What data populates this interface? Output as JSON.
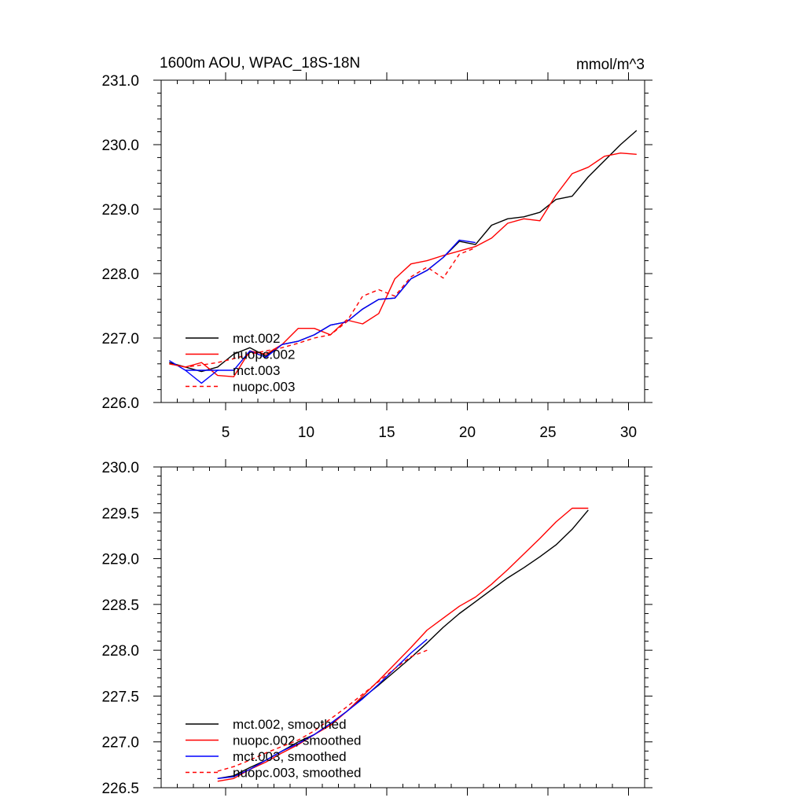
{
  "title_left": "1600m AOU, WPAC_18S-18N",
  "title_right": "mmol/m^3",
  "chart_data": [
    {
      "type": "line",
      "title": "1600m AOU, WPAC_18S-18N",
      "units": "mmol/m^3",
      "xlim": [
        1,
        31
      ],
      "ylim": [
        226.0,
        231.0
      ],
      "x_ticks": [
        5,
        10,
        15,
        20,
        25,
        30
      ],
      "x_tick_labels": [
        "5",
        "10",
        "15",
        "20",
        "25",
        "30"
      ],
      "y_ticks": [
        226,
        227,
        228,
        229,
        230,
        231
      ],
      "y_tick_labels": [
        "226.0",
        "227.0",
        "228.0",
        "229.0",
        "230.0",
        "231.0"
      ],
      "legend_position": "bottom-left",
      "series": [
        {
          "name": "mct.002",
          "color": "#000000",
          "dash": "solid",
          "x": [
            1.5,
            2.5,
            3.5,
            4.5,
            5.5,
            6.5,
            7.5,
            8.5,
            9.5,
            10.5,
            11.5,
            12.5,
            13.5,
            14.5,
            15.5,
            16.5,
            17.5,
            18.5,
            19.5,
            20.5,
            21.5,
            22.5,
            23.5,
            24.5,
            25.5,
            26.5,
            27.5,
            28.5,
            29.5,
            30.5
          ],
          "values": [
            226.62,
            226.55,
            226.48,
            226.55,
            226.75,
            226.85,
            226.72,
            226.9,
            226.95,
            227.05,
            227.2,
            227.25,
            227.45,
            227.6,
            227.62,
            227.92,
            228.05,
            228.25,
            228.5,
            228.45,
            228.75,
            228.85,
            228.88,
            228.95,
            229.15,
            229.2,
            229.5,
            229.75,
            230.0,
            230.22
          ]
        },
        {
          "name": "nuopc.002",
          "color": "#ff0000",
          "dash": "solid",
          "x": [
            1.5,
            2.5,
            3.5,
            4.5,
            5.5,
            6.5,
            7.5,
            8.5,
            9.5,
            10.5,
            11.5,
            12.5,
            13.5,
            14.5,
            15.5,
            16.5,
            17.5,
            18.5,
            19.5,
            20.5,
            21.5,
            22.5,
            23.5,
            24.5,
            25.5,
            26.5,
            27.5,
            28.5,
            29.5,
            30.5
          ],
          "values": [
            226.6,
            226.55,
            226.62,
            226.42,
            226.4,
            226.8,
            226.75,
            226.9,
            227.15,
            227.15,
            227.05,
            227.28,
            227.22,
            227.38,
            227.92,
            228.15,
            228.2,
            228.28,
            228.35,
            228.42,
            228.55,
            228.78,
            228.85,
            228.82,
            229.22,
            229.55,
            229.65,
            229.82,
            229.87,
            229.85
          ]
        },
        {
          "name": "mct.003",
          "color": "#0000ff",
          "dash": "solid",
          "x": [
            1.5,
            2.5,
            3.5,
            4.5,
            5.5,
            6.5,
            7.5,
            8.5,
            9.5,
            10.5,
            11.5,
            12.5,
            13.5,
            14.5,
            15.5,
            16.5,
            17.5,
            18.5,
            19.5,
            20.5
          ],
          "values": [
            226.65,
            226.5,
            226.3,
            226.5,
            226.5,
            226.8,
            226.7,
            226.9,
            226.95,
            227.05,
            227.2,
            227.25,
            227.45,
            227.6,
            227.62,
            227.92,
            228.05,
            228.25,
            228.52,
            228.48
          ]
        },
        {
          "name": "nuopc.003",
          "color": "#ff0000",
          "dash": "dashed",
          "x": [
            1.5,
            2.5,
            3.5,
            4.5,
            5.5,
            6.5,
            7.5,
            8.5,
            9.5,
            10.5,
            11.5,
            12.5,
            13.5,
            14.5,
            15.5,
            16.5,
            17.5,
            18.5,
            19.5,
            20.5
          ],
          "values": [
            226.6,
            226.55,
            226.58,
            226.62,
            226.68,
            226.75,
            226.8,
            226.85,
            226.92,
            227.0,
            227.05,
            227.25,
            227.65,
            227.75,
            227.65,
            227.95,
            228.1,
            227.93,
            228.3,
            228.4
          ]
        }
      ]
    },
    {
      "type": "line",
      "xlim": [
        1,
        31
      ],
      "ylim": [
        226.5,
        230.0
      ],
      "x_ticks": [
        5,
        10,
        15,
        20,
        25,
        30
      ],
      "y_ticks": [
        226.5,
        227.0,
        227.5,
        228.0,
        228.5,
        229.0,
        229.5,
        230.0
      ],
      "y_tick_labels": [
        "226.5",
        "227.0",
        "227.5",
        "228.0",
        "228.5",
        "229.0",
        "229.5",
        "230.0"
      ],
      "legend_position": "bottom-left",
      "series": [
        {
          "name": "mct.002, smoothed",
          "color": "#000000",
          "dash": "solid",
          "x": [
            4.5,
            5.5,
            6.5,
            7.5,
            8.5,
            9.5,
            10.5,
            11.5,
            12.5,
            13.5,
            14.5,
            15.5,
            16.5,
            17.5,
            18.5,
            19.5,
            20.5,
            21.5,
            22.5,
            23.5,
            24.5,
            25.5,
            26.5,
            27.5
          ],
          "values": [
            226.6,
            226.63,
            226.72,
            226.8,
            226.9,
            227.0,
            227.08,
            227.2,
            227.33,
            227.48,
            227.62,
            227.77,
            227.92,
            228.08,
            228.25,
            228.4,
            228.53,
            228.66,
            228.79,
            228.9,
            229.02,
            229.15,
            229.32,
            229.53
          ]
        },
        {
          "name": "nuopc.002, smoothed",
          "color": "#ff0000",
          "dash": "solid",
          "x": [
            4.5,
            5.5,
            6.5,
            7.5,
            8.5,
            9.5,
            10.5,
            11.5,
            12.5,
            13.5,
            14.5,
            15.5,
            16.5,
            17.5,
            18.5,
            19.5,
            20.5,
            21.5,
            22.5,
            23.5,
            24.5,
            25.5,
            26.5,
            27.5
          ],
          "values": [
            226.57,
            226.6,
            226.7,
            226.78,
            226.88,
            226.97,
            227.08,
            227.18,
            227.33,
            227.5,
            227.67,
            227.85,
            228.03,
            228.22,
            228.35,
            228.48,
            228.58,
            228.72,
            228.88,
            229.05,
            229.22,
            229.4,
            229.55,
            229.55
          ]
        },
        {
          "name": "mct.003, smoothed",
          "color": "#0000ff",
          "dash": "solid",
          "x": [
            4.5,
            5.5,
            6.5,
            7.5,
            8.5,
            9.5,
            10.5,
            11.5,
            12.5,
            13.5,
            14.5,
            15.5,
            16.5,
            17.5
          ],
          "values": [
            226.6,
            226.62,
            226.7,
            226.8,
            226.9,
            226.98,
            227.08,
            227.2,
            227.33,
            227.47,
            227.63,
            227.8,
            227.97,
            228.12
          ]
        },
        {
          "name": "nuopc.003, smoothed",
          "color": "#ff0000",
          "dash": "dashed",
          "x": [
            4.5,
            5.5,
            6.5,
            7.5,
            8.5,
            9.5,
            10.5,
            11.5,
            12.5,
            13.5,
            14.5,
            15.5,
            16.5,
            17.5
          ],
          "values": [
            226.68,
            226.73,
            226.8,
            226.88,
            226.95,
            227.02,
            227.12,
            227.25,
            227.38,
            227.52,
            227.66,
            227.8,
            227.93,
            228.0
          ]
        }
      ]
    }
  ]
}
